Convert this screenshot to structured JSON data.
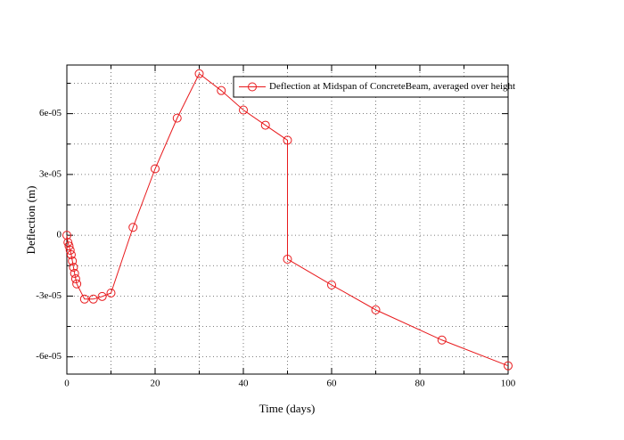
{
  "chart_data": {
    "type": "line",
    "xlabel": "Time (days)",
    "ylabel": "Deflection (m)",
    "series": [
      {
        "name": "Deflection at Midspan of ConcreteBeam, averaged over height",
        "color": "#e8191c",
        "x": [
          0,
          0.25,
          0.5,
          0.75,
          1,
          1.25,
          1.5,
          1.75,
          2,
          2.25,
          4,
          6,
          8,
          10,
          15,
          20,
          25,
          30,
          35,
          40,
          45,
          50,
          50,
          60,
          70,
          85,
          100
        ],
        "values": [
          0,
          -3.5e-06,
          -5.3e-06,
          -7.4e-06,
          -9.6e-06,
          -1.27e-05,
          -1.58e-05,
          -1.88e-05,
          -2.15e-05,
          -2.4e-05,
          -3.15e-05,
          -3.15e-05,
          -3.02e-05,
          -2.85e-05,
          3.9e-06,
          3.28e-05,
          5.78e-05,
          7.97e-05,
          7.14e-05,
          6.18e-05,
          5.43e-05,
          4.69e-05,
          -1.18e-05,
          -2.45e-05,
          -3.68e-05,
          -5.17e-05,
          -6.44e-05
        ]
      }
    ],
    "xlim": [
      0,
      100
    ],
    "xticks": [
      0,
      20,
      40,
      60,
      80,
      100
    ],
    "xminor_ticks": [
      10,
      30,
      50,
      70,
      90
    ],
    "ylim": [
      -6.85e-05,
      8.4e-05
    ],
    "yticks": [
      {
        "value": -6e-05,
        "label": "-6e-05"
      },
      {
        "value": -3e-05,
        "label": "-3e-05"
      },
      {
        "value": 0,
        "label": "0"
      },
      {
        "value": 3e-05,
        "label": "3e-05"
      },
      {
        "value": 6e-05,
        "label": "6e-05"
      }
    ],
    "yminor_ticks": [
      -4.5e-05,
      -1.5e-05,
      1.5e-05,
      4.5e-05,
      7.5e-05
    ],
    "grid": true,
    "legend": "upper right"
  }
}
